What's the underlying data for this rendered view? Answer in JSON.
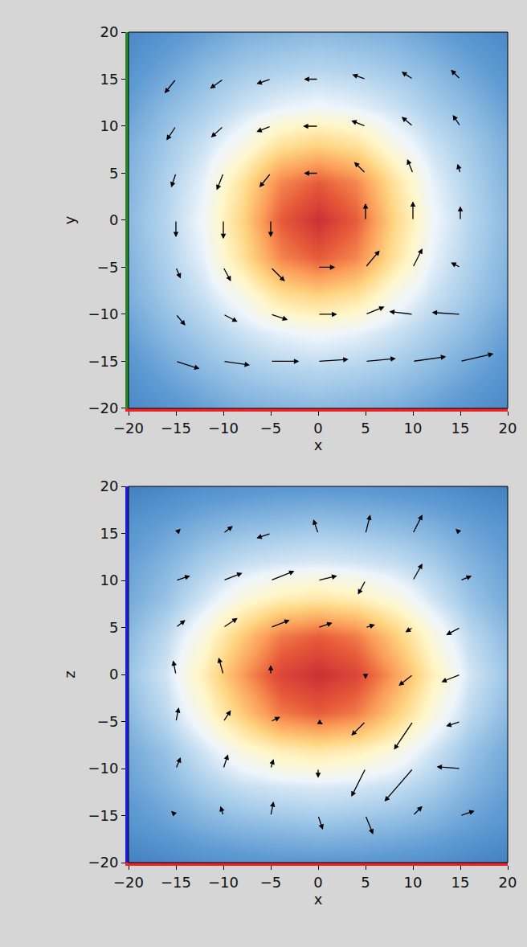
{
  "chart_data": [
    {
      "type": "heatmap",
      "xlabel": "x",
      "ylabel": "y",
      "xlim": [
        -20,
        20
      ],
      "ylim": [
        -20,
        20
      ],
      "xticks": [
        -20,
        -15,
        -10,
        -5,
        0,
        5,
        10,
        15,
        20
      ],
      "yticks": [
        -20,
        -15,
        -10,
        -5,
        0,
        5,
        10,
        15,
        20
      ],
      "grid": false,
      "x": [
        -20,
        -16,
        -12,
        -8,
        -4,
        0,
        4,
        8,
        12,
        16,
        20
      ],
      "y": [
        -20,
        -16,
        -12,
        -8,
        -4,
        0,
        4,
        8,
        12,
        16,
        20
      ],
      "zlim": [
        0,
        1
      ],
      "z": [
        [
          0.07,
          0.1,
          0.13,
          0.16,
          0.17,
          0.18,
          0.17,
          0.16,
          0.13,
          0.1,
          0.07
        ],
        [
          0.1,
          0.14,
          0.18,
          0.21,
          0.23,
          0.24,
          0.23,
          0.21,
          0.18,
          0.14,
          0.1
        ],
        [
          0.13,
          0.18,
          0.22,
          0.27,
          0.31,
          0.33,
          0.31,
          0.27,
          0.22,
          0.18,
          0.13
        ],
        [
          0.16,
          0.21,
          0.27,
          0.36,
          0.5,
          0.55,
          0.5,
          0.36,
          0.27,
          0.21,
          0.16
        ],
        [
          0.17,
          0.23,
          0.31,
          0.5,
          0.75,
          0.85,
          0.75,
          0.5,
          0.31,
          0.23,
          0.17
        ],
        [
          0.18,
          0.24,
          0.33,
          0.55,
          0.85,
          1.0,
          0.85,
          0.55,
          0.33,
          0.24,
          0.18
        ],
        [
          0.17,
          0.23,
          0.31,
          0.5,
          0.75,
          0.85,
          0.75,
          0.5,
          0.31,
          0.23,
          0.17
        ],
        [
          0.16,
          0.21,
          0.27,
          0.36,
          0.5,
          0.55,
          0.5,
          0.36,
          0.27,
          0.21,
          0.16
        ],
        [
          0.13,
          0.18,
          0.22,
          0.27,
          0.31,
          0.33,
          0.31,
          0.27,
          0.22,
          0.18,
          0.13
        ],
        [
          0.1,
          0.14,
          0.18,
          0.21,
          0.23,
          0.24,
          0.23,
          0.21,
          0.18,
          0.14,
          0.1
        ],
        [
          0.07,
          0.1,
          0.13,
          0.16,
          0.17,
          0.18,
          0.17,
          0.16,
          0.13,
          0.1,
          0.07
        ]
      ],
      "arrows": {
        "x": [
          -15,
          -10,
          -5,
          0,
          5,
          10,
          15
        ],
        "y": [
          15,
          10,
          5,
          0,
          -5,
          -10,
          -15
        ],
        "u": [
          [
            -1.2,
            -1.4,
            -1.5,
            -1.5,
            -1.4,
            -1.2,
            -1.0
          ],
          [
            -1.0,
            -1.3,
            -1.5,
            -1.6,
            -1.5,
            -1.2,
            -0.8
          ],
          [
            -0.5,
            -0.7,
            -1.2,
            -1.5,
            -1.2,
            -0.6,
            -0.3
          ],
          [
            0,
            0,
            0,
            0,
            0,
            0,
            0
          ],
          [
            0.5,
            0.8,
            1.5,
            1.8,
            1.5,
            1.0,
            -1.0
          ],
          [
            1.0,
            1.5,
            1.8,
            2.0,
            2.0,
            -2.5,
            -3.0
          ],
          [
            2.5,
            2.8,
            3.0,
            3.2,
            3.2,
            3.5,
            3.5
          ]
        ],
        "v": [
          [
            -1.5,
            -1.0,
            -0.5,
            0.0,
            0.5,
            0.8,
            1.0
          ],
          [
            -1.5,
            -1.2,
            -0.6,
            0.0,
            0.6,
            1.0,
            1.2
          ],
          [
            -1.5,
            -1.8,
            -1.5,
            0.0,
            1.2,
            1.5,
            1.0
          ],
          [
            -1.8,
            -2.0,
            -1.8,
            0,
            1.8,
            2.0,
            1.5
          ],
          [
            -1.2,
            -1.5,
            -1.5,
            0.0,
            1.8,
            2.0,
            0.5
          ],
          [
            -1.2,
            -0.8,
            -0.6,
            0.0,
            0.8,
            0.3,
            0.2
          ],
          [
            -0.8,
            -0.4,
            0.0,
            0.2,
            0.3,
            0.5,
            0.8
          ]
        ]
      }
    },
    {
      "type": "heatmap",
      "xlabel": "x",
      "ylabel": "z",
      "xlim": [
        -20,
        20
      ],
      "ylim": [
        -20,
        20
      ],
      "xticks": [
        -20,
        -15,
        -10,
        -5,
        0,
        5,
        10,
        15,
        20
      ],
      "yticks": [
        -20,
        -15,
        -10,
        -5,
        0,
        5,
        10,
        15,
        20
      ],
      "grid": false,
      "x": [
        -20,
        -16,
        -12,
        -8,
        -4,
        0,
        4,
        8,
        12,
        16,
        20
      ],
      "y": [
        -20,
        -16,
        -12,
        -8,
        -4,
        0,
        4,
        8,
        12,
        16,
        20
      ],
      "zlim": [
        0,
        1
      ],
      "z": [
        [
          0.05,
          0.07,
          0.09,
          0.1,
          0.11,
          0.11,
          0.11,
          0.1,
          0.09,
          0.07,
          0.05
        ],
        [
          0.1,
          0.13,
          0.16,
          0.18,
          0.19,
          0.2,
          0.19,
          0.18,
          0.16,
          0.13,
          0.1
        ],
        [
          0.13,
          0.17,
          0.22,
          0.26,
          0.28,
          0.29,
          0.28,
          0.26,
          0.22,
          0.17,
          0.13
        ],
        [
          0.15,
          0.2,
          0.28,
          0.38,
          0.45,
          0.48,
          0.45,
          0.38,
          0.28,
          0.2,
          0.15
        ],
        [
          0.18,
          0.25,
          0.38,
          0.58,
          0.78,
          0.85,
          0.78,
          0.58,
          0.38,
          0.25,
          0.18
        ],
        [
          0.2,
          0.28,
          0.45,
          0.7,
          0.92,
          1.0,
          0.92,
          0.7,
          0.45,
          0.28,
          0.2
        ],
        [
          0.18,
          0.25,
          0.38,
          0.58,
          0.78,
          0.85,
          0.78,
          0.58,
          0.38,
          0.25,
          0.18
        ],
        [
          0.15,
          0.2,
          0.28,
          0.38,
          0.45,
          0.48,
          0.45,
          0.38,
          0.28,
          0.2,
          0.15
        ],
        [
          0.13,
          0.17,
          0.22,
          0.26,
          0.28,
          0.29,
          0.28,
          0.26,
          0.22,
          0.17,
          0.13
        ],
        [
          0.1,
          0.13,
          0.16,
          0.18,
          0.19,
          0.2,
          0.19,
          0.18,
          0.16,
          0.13,
          0.1
        ],
        [
          0.05,
          0.07,
          0.09,
          0.1,
          0.11,
          0.11,
          0.11,
          0.1,
          0.09,
          0.07,
          0.05
        ]
      ],
      "arrows": {
        "x": [
          -15,
          -10,
          -5,
          0,
          5,
          10,
          15
        ],
        "y": [
          15,
          10,
          5,
          0,
          -5,
          -10,
          -15
        ],
        "u": [
          [
            0.5,
            1.0,
            -1.5,
            -0.5,
            0.5,
            1.0,
            -0.5
          ],
          [
            1.5,
            2.0,
            2.5,
            2.0,
            -0.8,
            1.0,
            1.2
          ],
          [
            1.0,
            1.5,
            2.0,
            1.5,
            1.0,
            -0.8,
            -1.5
          ],
          [
            -0.3,
            -0.5,
            0.0,
            0.0,
            0.0,
            -1.5,
            -2.0
          ],
          [
            0.3,
            0.8,
            1.0,
            0.5,
            -1.5,
            -2.0,
            -1.5
          ],
          [
            0.5,
            0.5,
            0.3,
            0.0,
            -1.5,
            -3.0,
            -2.5
          ],
          [
            -0.5,
            -0.3,
            0.3,
            0.5,
            0.8,
            1.0,
            1.5
          ]
        ],
        "v": [
          [
            0.5,
            0.8,
            -0.5,
            1.5,
            2.0,
            2.0,
            0.5
          ],
          [
            0.5,
            0.8,
            1.0,
            0.5,
            -1.5,
            1.8,
            0.5
          ],
          [
            0.8,
            1.0,
            0.8,
            0.5,
            0.3,
            -0.5,
            -0.8
          ],
          [
            1.5,
            1.8,
            1.0,
            0.0,
            -0.5,
            -1.2,
            -0.8
          ],
          [
            1.5,
            1.2,
            0.5,
            -0.3,
            -1.5,
            -3.0,
            -0.5
          ],
          [
            1.2,
            1.5,
            1.0,
            -1.0,
            -3.0,
            -3.5,
            0.2
          ],
          [
            0.5,
            1.0,
            1.5,
            -1.5,
            -2.0,
            1.0,
            0.5
          ]
        ]
      }
    }
  ]
}
